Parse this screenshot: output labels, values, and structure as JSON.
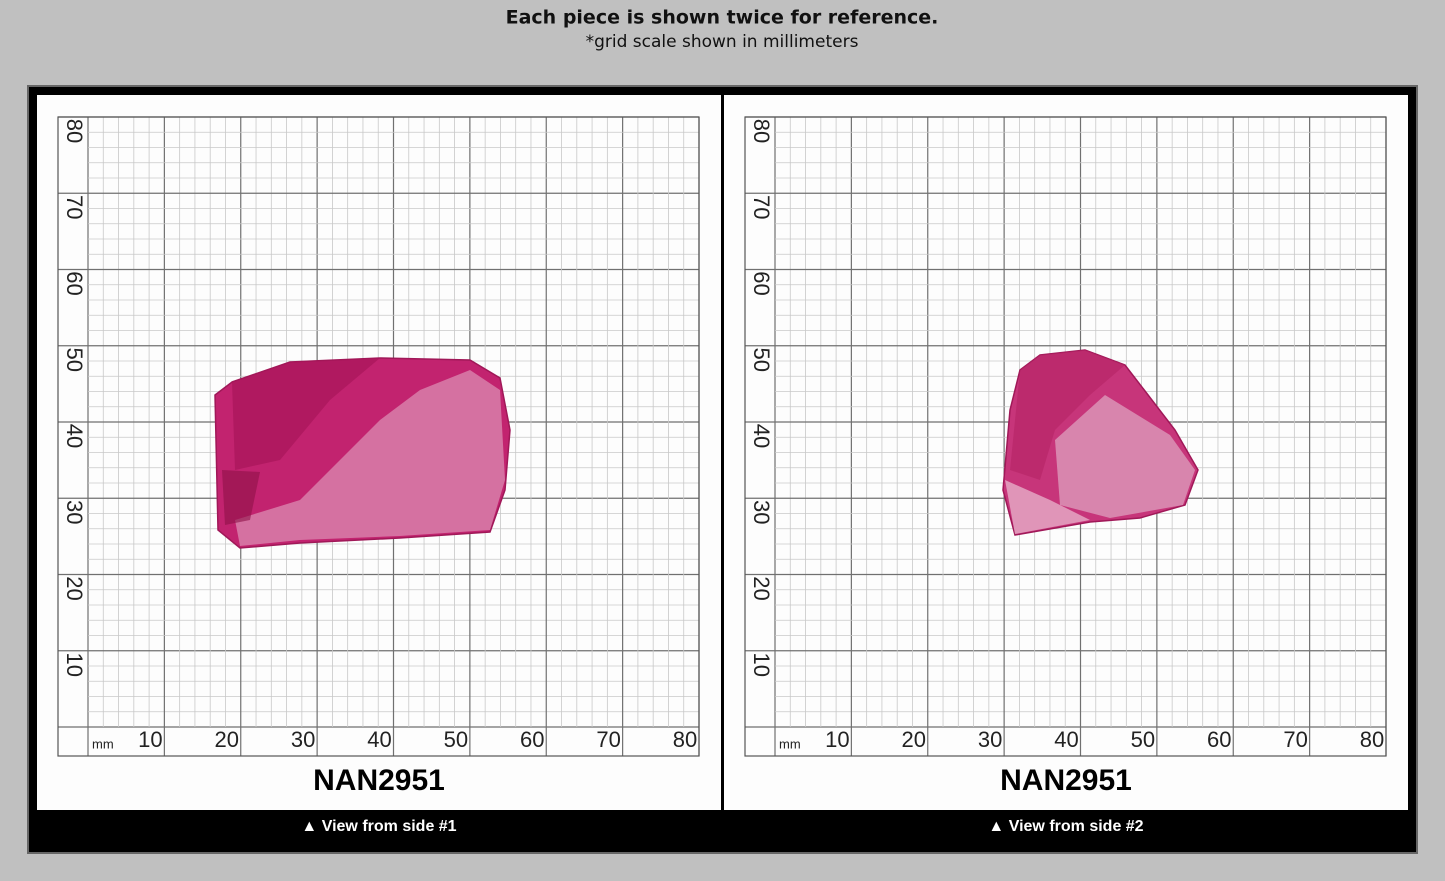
{
  "header": {
    "title": "Each piece is shown twice for reference.",
    "subtitle": "*grid scale shown in millimeters"
  },
  "panels": [
    {
      "unit": "mm",
      "x_labels": [
        10,
        20,
        30,
        40,
        50,
        60,
        70,
        80
      ],
      "y_labels": [
        10,
        20,
        30,
        40,
        50,
        60,
        70,
        80
      ],
      "caption": "NAN2951",
      "footer": "▲ View from side #1"
    },
    {
      "unit": "mm",
      "x_labels": [
        10,
        20,
        30,
        40,
        50,
        60,
        70,
        80
      ],
      "y_labels": [
        10,
        20,
        30,
        40,
        50,
        60,
        70,
        80
      ],
      "caption": "NAN2951",
      "footer": "▲ View from side #2"
    }
  ]
}
